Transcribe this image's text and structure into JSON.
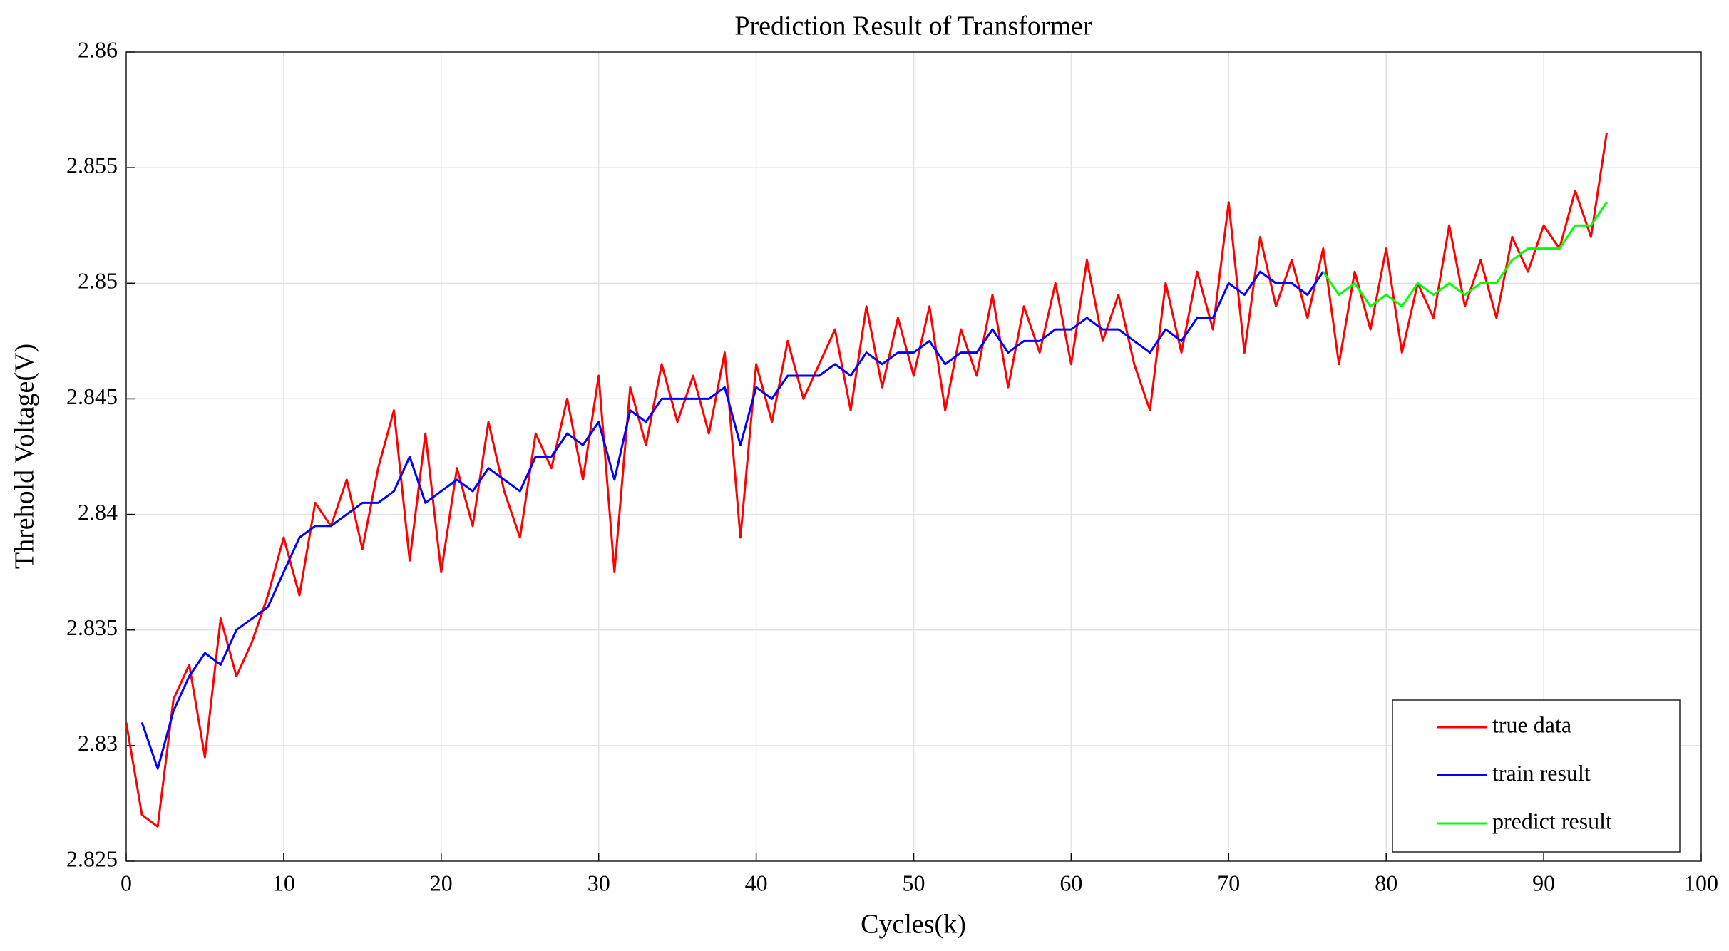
{
  "chart_data": {
    "type": "line",
    "title": "Prediction Result of Transformer",
    "x_label": "Cycles(k)",
    "y_label": "Threhold Voltage(V)",
    "x": [
      0,
      1,
      2,
      3,
      4,
      5,
      6,
      7,
      8,
      9,
      10,
      11,
      12,
      13,
      14,
      15,
      16,
      17,
      18,
      19,
      20,
      21,
      22,
      23,
      24,
      25,
      26,
      27,
      28,
      29,
      30,
      31,
      32,
      33,
      34,
      35,
      36,
      37,
      38,
      39,
      40,
      41,
      42,
      43,
      44,
      45,
      46,
      47,
      48,
      49,
      50,
      51,
      52,
      53,
      54,
      55,
      56,
      57,
      58,
      59,
      60,
      61,
      62,
      63,
      64,
      65,
      66,
      67,
      68,
      69,
      70,
      71,
      72,
      73,
      74,
      75,
      76,
      77,
      78,
      79,
      80,
      81,
      82,
      83,
      84,
      85,
      86,
      87,
      88,
      89,
      90,
      91,
      92,
      93,
      94
    ],
    "series": [
      {
        "name": "true data",
        "color": "#ff0000",
        "values": [
          2.831,
          2.827,
          2.8265,
          2.832,
          2.8335,
          2.8295,
          2.8355,
          2.833,
          2.8345,
          2.8365,
          2.839,
          2.8365,
          2.8405,
          2.8395,
          2.8415,
          2.8385,
          2.842,
          2.8445,
          2.838,
          2.8435,
          2.8375,
          2.842,
          2.8395,
          2.844,
          2.841,
          2.839,
          2.8435,
          2.842,
          2.845,
          2.8415,
          2.846,
          2.8375,
          2.8455,
          2.843,
          2.8465,
          2.844,
          2.846,
          2.8435,
          2.847,
          2.839,
          2.8465,
          2.844,
          2.8475,
          2.845,
          2.8465,
          2.848,
          2.8445,
          2.849,
          2.8455,
          2.8485,
          2.846,
          2.849,
          2.8445,
          2.848,
          2.846,
          2.8495,
          2.8455,
          2.849,
          2.847,
          2.85,
          2.8465,
          2.851,
          2.8475,
          2.8495,
          2.8465,
          2.8445,
          2.85,
          2.847,
          2.8505,
          2.848,
          2.8535,
          2.847,
          2.852,
          2.849,
          2.851,
          2.8485,
          2.8515,
          2.8465,
          2.8505,
          2.848,
          2.8515,
          2.847,
          2.85,
          2.8485,
          2.8525,
          2.849,
          2.851,
          2.8485,
          2.852,
          2.8505,
          2.8525,
          2.8515,
          2.854,
          2.852,
          2.8565
        ]
      },
      {
        "name": "train result",
        "color": "#0000ff",
        "values": [
          null,
          2.831,
          2.829,
          2.8315,
          2.833,
          2.834,
          2.8335,
          2.835,
          2.8355,
          2.836,
          2.8375,
          2.839,
          2.8395,
          2.8395,
          2.84,
          2.8405,
          2.8405,
          2.841,
          2.8425,
          2.8405,
          2.841,
          2.8415,
          2.841,
          2.842,
          2.8415,
          2.841,
          2.8425,
          2.8425,
          2.8435,
          2.843,
          2.844,
          2.8415,
          2.8445,
          2.844,
          2.845,
          2.845,
          2.845,
          2.845,
          2.8455,
          2.843,
          2.8455,
          2.845,
          2.846,
          2.846,
          2.846,
          2.8465,
          2.846,
          2.847,
          2.8465,
          2.847,
          2.847,
          2.8475,
          2.8465,
          2.847,
          2.847,
          2.848,
          2.847,
          2.8475,
          2.8475,
          2.848,
          2.848,
          2.8485,
          2.848,
          2.848,
          2.8475,
          2.847,
          2.848,
          2.8475,
          2.8485,
          2.8485,
          2.85,
          2.8495,
          2.8505,
          2.85,
          2.85,
          2.8495,
          2.8505,
          null,
          null,
          null,
          null,
          null,
          null,
          null,
          null,
          null,
          null,
          null,
          null,
          null,
          null,
          null,
          null,
          null,
          null
        ]
      },
      {
        "name": "predict result",
        "color": "#00ff00",
        "values": [
          null,
          null,
          null,
          null,
          null,
          null,
          null,
          null,
          null,
          null,
          null,
          null,
          null,
          null,
          null,
          null,
          null,
          null,
          null,
          null,
          null,
          null,
          null,
          null,
          null,
          null,
          null,
          null,
          null,
          null,
          null,
          null,
          null,
          null,
          null,
          null,
          null,
          null,
          null,
          null,
          null,
          null,
          null,
          null,
          null,
          null,
          null,
          null,
          null,
          null,
          null,
          null,
          null,
          null,
          null,
          null,
          null,
          null,
          null,
          null,
          null,
          null,
          null,
          null,
          null,
          null,
          null,
          null,
          null,
          null,
          null,
          null,
          null,
          null,
          null,
          null,
          2.8505,
          2.8495,
          2.85,
          2.849,
          2.8495,
          2.849,
          2.85,
          2.8495,
          2.85,
          2.8495,
          2.85,
          2.85,
          2.851,
          2.8515,
          2.8515,
          2.8515,
          2.8525,
          2.8525,
          2.8535
        ]
      }
    ],
    "xlim": [
      0,
      100
    ],
    "xticks": [
      0,
      10,
      20,
      30,
      40,
      50,
      60,
      70,
      80,
      90,
      100
    ],
    "ylim": [
      2.825,
      2.86
    ],
    "yticks": [
      2.825,
      2.83,
      2.835,
      2.84,
      2.845,
      2.85,
      2.855,
      2.86
    ],
    "grid": true,
    "legend": "lower right"
  }
}
